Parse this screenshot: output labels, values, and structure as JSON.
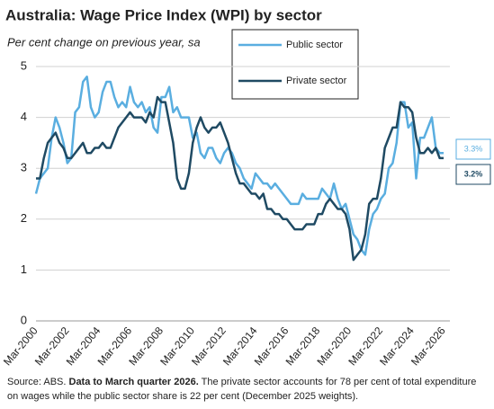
{
  "chart_data": {
    "type": "line",
    "title": "Australia: Wage Price Index (WPI) by sector",
    "subtitle": "Per cent change on previous year, sa",
    "categories": [
      "Mar-2000",
      null,
      null,
      null,
      null,
      null,
      null,
      null,
      "Mar-2002",
      null,
      null,
      null,
      null,
      null,
      null,
      null,
      "Mar-2004",
      null,
      null,
      null,
      null,
      null,
      null,
      null,
      "Mar-2006",
      null,
      null,
      null,
      null,
      null,
      null,
      null,
      "Mar-2008",
      null,
      null,
      null,
      null,
      null,
      null,
      null,
      "Mar-2010",
      null,
      null,
      null,
      null,
      null,
      null,
      null,
      "Mar-2012",
      null,
      null,
      null,
      null,
      null,
      null,
      null,
      "Mar-2014",
      null,
      null,
      null,
      null,
      null,
      null,
      null,
      "Mar-2016",
      null,
      null,
      null,
      null,
      null,
      null,
      null,
      "Mar-2018",
      null,
      null,
      null,
      null,
      null,
      null,
      null,
      "Mar-2020",
      null,
      null,
      null,
      null,
      null,
      null,
      null,
      "Mar-2022",
      null,
      null,
      null,
      null,
      null,
      null,
      null,
      "Mar-2024",
      null,
      null,
      null,
      null,
      null,
      null,
      null,
      "Mar-2026"
    ],
    "series": [
      {
        "name": "Public sector",
        "color": "#5aaee0",
        "end_label": "3.3%",
        "values": [
          2.5,
          2.8,
          2.9,
          3.0,
          3.6,
          4.0,
          3.8,
          3.5,
          3.1,
          3.2,
          4.1,
          4.2,
          4.7,
          4.8,
          4.2,
          4.0,
          4.1,
          4.5,
          4.7,
          4.7,
          4.4,
          4.2,
          4.3,
          4.2,
          4.6,
          4.3,
          4.2,
          4.3,
          4.1,
          4.2,
          3.8,
          3.7,
          4.4,
          4.4,
          4.6,
          4.1,
          4.2,
          4.0,
          4.0,
          4.0,
          3.6,
          3.7,
          3.3,
          3.2,
          3.4,
          3.4,
          3.2,
          3.1,
          3.3,
          3.4,
          3.3,
          3.1,
          3.0,
          2.8,
          2.7,
          2.6,
          2.9,
          2.8,
          2.7,
          2.7,
          2.6,
          2.7,
          2.6,
          2.5,
          2.4,
          2.3,
          2.3,
          2.3,
          2.5,
          2.4,
          2.4,
          2.4,
          2.4,
          2.6,
          2.5,
          2.4,
          2.7,
          2.4,
          2.2,
          2.3,
          2.0,
          1.7,
          1.6,
          1.4,
          1.3,
          1.8,
          2.1,
          2.2,
          2.4,
          2.5,
          3.0,
          3.1,
          3.5,
          4.3,
          4.3,
          3.8,
          3.9,
          2.8,
          3.6,
          3.6,
          3.8,
          4.0,
          3.4,
          3.3,
          3.3
        ]
      },
      {
        "name": "Private sector",
        "color": "#1f4a63",
        "end_label": "3.2%",
        "values": [
          2.8,
          2.8,
          3.2,
          3.5,
          3.6,
          3.7,
          3.5,
          3.4,
          3.2,
          3.2,
          3.3,
          3.4,
          3.5,
          3.3,
          3.3,
          3.4,
          3.4,
          3.5,
          3.4,
          3.4,
          3.6,
          3.8,
          3.9,
          4.0,
          4.1,
          4.0,
          4.0,
          4.0,
          3.9,
          4.1,
          4.0,
          4.4,
          4.3,
          4.3,
          3.9,
          3.5,
          2.8,
          2.6,
          2.6,
          2.9,
          3.5,
          3.8,
          4.0,
          3.8,
          3.7,
          3.8,
          3.8,
          3.9,
          3.7,
          3.5,
          3.2,
          2.9,
          2.7,
          2.7,
          2.6,
          2.5,
          2.5,
          2.4,
          2.5,
          2.2,
          2.2,
          2.1,
          2.1,
          2.0,
          2.0,
          1.9,
          1.8,
          1.8,
          1.8,
          1.9,
          1.9,
          1.9,
          2.1,
          2.1,
          2.3,
          2.4,
          2.3,
          2.2,
          2.2,
          2.1,
          1.8,
          1.2,
          1.3,
          1.4,
          1.7,
          2.3,
          2.4,
          2.4,
          2.8,
          3.4,
          3.6,
          3.8,
          3.8,
          4.3,
          4.2,
          4.2,
          4.1,
          3.6,
          3.3,
          3.3,
          3.4,
          3.3,
          3.4,
          3.2,
          3.2
        ]
      }
    ],
    "ylim": [
      0,
      5
    ],
    "yticks": [
      0,
      1,
      2,
      3,
      4,
      5
    ],
    "grid": true,
    "source_prefix": "Source: ABS.",
    "source_bold": "Data to March quarter 2026.",
    "source_text": "The private sector accounts for  78 per cent of total expenditure on wages while the public sector share is 22 per cent (December 2025 weights)."
  }
}
